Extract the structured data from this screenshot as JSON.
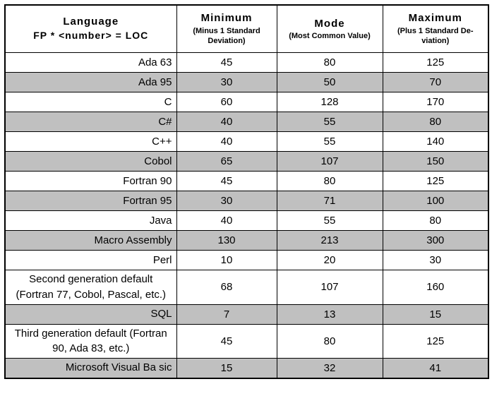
{
  "header": {
    "language": {
      "line1": "Language",
      "line2": "FP * <number> = LOC"
    },
    "minimum": {
      "title": "Minimum",
      "subtitle": "(Minus 1 Standard Deviation)"
    },
    "mode": {
      "title": "Mode",
      "subtitle": "(Most Common Value)"
    },
    "maximum": {
      "title": "Maximum",
      "subtitle": "(Plus 1 Standard De-viation)"
    }
  },
  "table": {
    "rows": [
      {
        "language": "Ada 63",
        "minimum": "45",
        "mode": "80",
        "maximum": "125",
        "shaded": false,
        "center": false
      },
      {
        "language": "Ada 95",
        "minimum": "30",
        "mode": "50",
        "maximum": "70",
        "shaded": true,
        "center": false
      },
      {
        "language": "C",
        "minimum": "60",
        "mode": "128",
        "maximum": "170",
        "shaded": false,
        "center": false
      },
      {
        "language": "C#",
        "minimum": "40",
        "mode": "55",
        "maximum": "80",
        "shaded": true,
        "center": false
      },
      {
        "language": "C++",
        "minimum": "40",
        "mode": "55",
        "maximum": "140",
        "shaded": false,
        "center": false
      },
      {
        "language": "Cobol",
        "minimum": "65",
        "mode": "107",
        "maximum": "150",
        "shaded": true,
        "center": false
      },
      {
        "language": "Fortran 90",
        "minimum": "45",
        "mode": "80",
        "maximum": "125",
        "shaded": false,
        "center": false
      },
      {
        "language": "Fortran 95",
        "minimum": "30",
        "mode": "71",
        "maximum": "100",
        "shaded": true,
        "center": false
      },
      {
        "language": "Java",
        "minimum": "40",
        "mode": "55",
        "maximum": "80",
        "shaded": false,
        "center": false
      },
      {
        "language": "Macro Assembly",
        "minimum": "130",
        "mode": "213",
        "maximum": "300",
        "shaded": true,
        "center": false
      },
      {
        "language": "Perl",
        "minimum": "10",
        "mode": "20",
        "maximum": "30",
        "shaded": false,
        "center": false
      },
      {
        "language": "Second generation default (Fortran 77, Cobol, Pascal, etc.)",
        "minimum": "68",
        "mode": "107",
        "maximum": "160",
        "shaded": false,
        "center": true
      },
      {
        "language": "SQL",
        "minimum": "7",
        "mode": "13",
        "maximum": "15",
        "shaded": true,
        "center": false
      },
      {
        "language": "Third generation default (Fortran 90, Ada 83, etc.)",
        "minimum": "45",
        "mode": "80",
        "maximum": "125",
        "shaded": false,
        "center": true
      },
      {
        "language": "Microsoft Visual Ba sic",
        "minimum": "15",
        "mode": "32",
        "maximum": "41",
        "shaded": true,
        "center": false
      }
    ]
  },
  "colors": {
    "row_shading": "#c0c0c0",
    "border": "#000000"
  }
}
